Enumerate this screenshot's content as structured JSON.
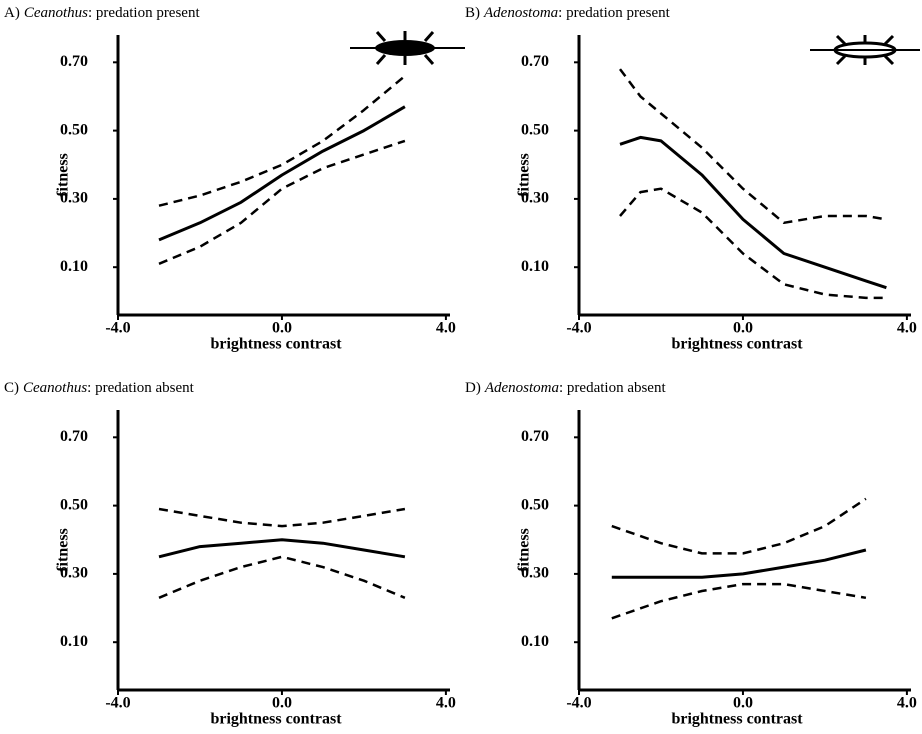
{
  "chart_data": [
    {
      "type": "line",
      "panel": "A)",
      "genus": "Ceanothus",
      "title": ": predation present",
      "xlabel": "brightness contrast",
      "ylabel": "fitness",
      "xlim": [
        -4.0,
        4.1
      ],
      "ylim": [
        -0.04,
        0.78
      ],
      "xticks": [
        {
          "value": -4.0,
          "label": "-4.0"
        },
        {
          "value": 0.0,
          "label": "0.0"
        },
        {
          "value": 4.0,
          "label": "4.0"
        }
      ],
      "yticks": [
        {
          "value": 0.1,
          "label": "0.10"
        },
        {
          "value": 0.3,
          "label": "0.30"
        },
        {
          "value": 0.5,
          "label": "0.50"
        },
        {
          "value": 0.7,
          "label": "0.70"
        }
      ],
      "x": [
        -3,
        -2,
        -1,
        0,
        1,
        2,
        3
      ],
      "series": [
        {
          "color": "#000000",
          "dash": false,
          "values": [
            0.18,
            0.23,
            0.29,
            0.37,
            0.44,
            0.5,
            0.57
          ]
        },
        {
          "color": "#000000",
          "dash": true,
          "values": [
            0.28,
            0.31,
            0.35,
            0.4,
            0.47,
            0.56,
            0.66
          ]
        },
        {
          "color": "#000000",
          "dash": true,
          "values": [
            0.11,
            0.16,
            0.23,
            0.33,
            0.39,
            0.43,
            0.47
          ]
        }
      ]
    },
    {
      "type": "line",
      "panel": "B)",
      "genus": "Adenostoma",
      "title": ": predation present",
      "xlabel": "brightness contrast",
      "ylabel": "fitness",
      "xlim": [
        -4.0,
        4.1
      ],
      "ylim": [
        -0.04,
        0.78
      ],
      "xticks": [
        {
          "value": -4.0,
          "label": "-4.0"
        },
        {
          "value": 0.0,
          "label": "0.0"
        },
        {
          "value": 4.0,
          "label": "4.0"
        }
      ],
      "yticks": [
        {
          "value": 0.1,
          "label": "0.10"
        },
        {
          "value": 0.3,
          "label": "0.30"
        },
        {
          "value": 0.5,
          "label": "0.50"
        },
        {
          "value": 0.7,
          "label": "0.70"
        }
      ],
      "x": [
        -3,
        -2.5,
        -2,
        -1,
        0,
        1,
        2,
        3,
        3.5
      ],
      "series": [
        {
          "color": "#000000",
          "dash": false,
          "values": [
            0.46,
            0.48,
            0.47,
            0.37,
            0.24,
            0.14,
            0.1,
            0.06,
            0.04
          ]
        },
        {
          "color": "#000000",
          "dash": true,
          "values": [
            0.68,
            0.6,
            0.55,
            0.45,
            0.33,
            0.23,
            0.25,
            0.25,
            0.24
          ]
        },
        {
          "color": "#000000",
          "dash": true,
          "values": [
            0.25,
            0.32,
            0.33,
            0.26,
            0.14,
            0.05,
            0.02,
            0.01,
            0.01
          ]
        }
      ]
    },
    {
      "type": "line",
      "panel": "C)",
      "genus": "Ceanothus",
      "title": ": predation absent",
      "xlabel": "brightness contrast",
      "ylabel": "fitness",
      "xlim": [
        -4.0,
        4.1
      ],
      "ylim": [
        -0.04,
        0.78
      ],
      "xticks": [
        {
          "value": -4.0,
          "label": "-4.0"
        },
        {
          "value": 0.0,
          "label": "0.0"
        },
        {
          "value": 4.0,
          "label": "4.0"
        }
      ],
      "yticks": [
        {
          "value": 0.1,
          "label": "0.10"
        },
        {
          "value": 0.3,
          "label": "0.30"
        },
        {
          "value": 0.5,
          "label": "0.50"
        },
        {
          "value": 0.7,
          "label": "0.70"
        }
      ],
      "x": [
        -3,
        -2,
        -1,
        0,
        1,
        2,
        3
      ],
      "series": [
        {
          "color": "#000000",
          "dash": false,
          "values": [
            0.35,
            0.38,
            0.39,
            0.4,
            0.39,
            0.37,
            0.35
          ]
        },
        {
          "color": "#000000",
          "dash": true,
          "values": [
            0.49,
            0.47,
            0.45,
            0.44,
            0.45,
            0.47,
            0.49
          ]
        },
        {
          "color": "#000000",
          "dash": true,
          "values": [
            0.23,
            0.28,
            0.32,
            0.35,
            0.32,
            0.28,
            0.23
          ]
        }
      ]
    },
    {
      "type": "line",
      "panel": "D)",
      "genus": "Adenostoma",
      "title": ": predation absent",
      "xlabel": "brightness contrast",
      "ylabel": "fitness",
      "xlim": [
        -4.0,
        4.1
      ],
      "ylim": [
        -0.04,
        0.78
      ],
      "xticks": [
        {
          "value": -4.0,
          "label": "-4.0"
        },
        {
          "value": 0.0,
          "label": "0.0"
        },
        {
          "value": 4.0,
          "label": "4.0"
        }
      ],
      "yticks": [
        {
          "value": 0.1,
          "label": "0.10"
        },
        {
          "value": 0.3,
          "label": "0.30"
        },
        {
          "value": 0.5,
          "label": "0.50"
        },
        {
          "value": 0.7,
          "label": "0.70"
        }
      ],
      "x": [
        -3.2,
        -2,
        -1,
        0,
        1,
        2,
        3
      ],
      "series": [
        {
          "color": "#000000",
          "dash": false,
          "values": [
            0.29,
            0.29,
            0.29,
            0.3,
            0.32,
            0.34,
            0.37
          ]
        },
        {
          "color": "#000000",
          "dash": true,
          "values": [
            0.44,
            0.39,
            0.36,
            0.36,
            0.39,
            0.44,
            0.52
          ]
        },
        {
          "color": "#000000",
          "dash": true,
          "values": [
            0.17,
            0.22,
            0.25,
            0.27,
            0.27,
            0.25,
            0.23
          ]
        }
      ]
    }
  ]
}
